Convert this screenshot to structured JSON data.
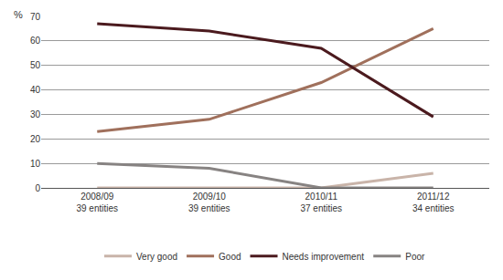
{
  "chart_data": {
    "type": "line",
    "ylabel": "%",
    "categories": [
      "2008/09\n39 entities",
      "2009/10\n39 entities",
      "2010/11\n37 entities",
      "2011/12\n34 entities"
    ],
    "series": [
      {
        "name": "Very good",
        "color": "#c9b4a9",
        "values": [
          0,
          0,
          0,
          6
        ]
      },
      {
        "name": "Good",
        "color": "#a0705c",
        "values": [
          23,
          28,
          43,
          65
        ]
      },
      {
        "name": "Needs improvement",
        "color": "#4b1a1e",
        "values": [
          67,
          64,
          57,
          29
        ]
      },
      {
        "name": "Poor",
        "color": "#878382",
        "values": [
          10,
          8,
          0,
          0
        ]
      }
    ],
    "ylim": [
      0,
      70
    ],
    "yticks": [
      0,
      10,
      20,
      30,
      40,
      50,
      60,
      70
    ],
    "grid": true,
    "legend": "bottom"
  }
}
